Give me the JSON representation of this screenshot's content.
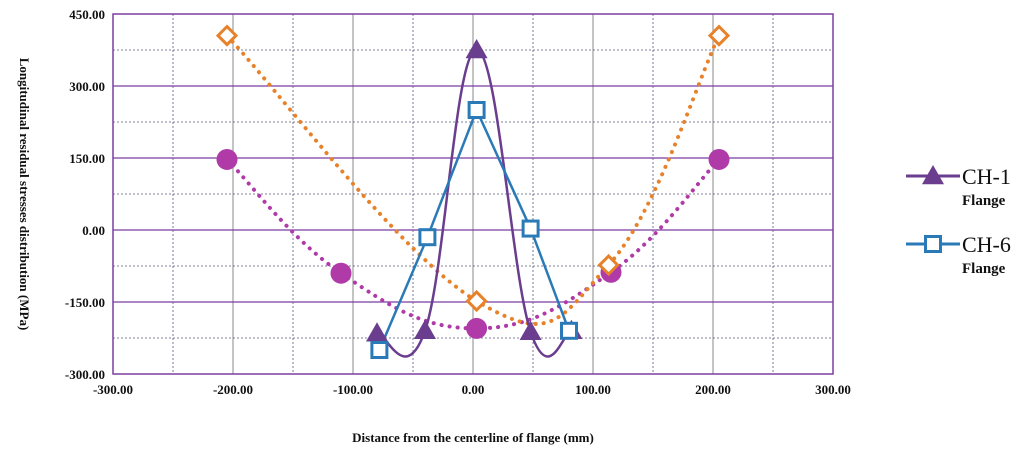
{
  "chart_data": {
    "type": "line",
    "xlabel": "Distance from the centerline of flange (mm)",
    "ylabel": "Longitudinal residual stresses distribution (MPa)",
    "xlim": [
      -300,
      300
    ],
    "ylim": [
      -300,
      450
    ],
    "x_ticks": [
      "-300.00",
      "-200.00",
      "-100.00",
      "0.00",
      "100.00",
      "200.00",
      "300.00"
    ],
    "y_ticks": [
      "450.00",
      "300.00",
      "150.00",
      "0.00",
      "-150.00",
      "-300.00"
    ],
    "grid": true,
    "legend_position": "right",
    "series": [
      {
        "name": "CH-1",
        "subtitle": "Flange",
        "color": "#6a3d8f",
        "marker": "triangle",
        "line": "solid",
        "points": [
          [
            -80,
            -215
          ],
          [
            -40,
            -210
          ],
          [
            3,
            375
          ],
          [
            48,
            -212
          ],
          [
            82,
            -210
          ]
        ]
      },
      {
        "name": "CH-6",
        "subtitle": "Flange",
        "color": "#2a7ab8",
        "marker": "square-open",
        "line": "solid",
        "points": [
          [
            -78,
            -250
          ],
          [
            -38,
            -15
          ],
          [
            3,
            250
          ],
          [
            48,
            3
          ],
          [
            80,
            -210
          ]
        ]
      },
      {
        "color": "#e8822a",
        "marker": "diamond-open",
        "line": "dotted",
        "points": [
          [
            -205,
            405
          ],
          [
            3,
            -148
          ],
          [
            113,
            -73
          ],
          [
            205,
            405
          ]
        ]
      },
      {
        "color": "#b03aa8",
        "marker": "circle",
        "line": "dotted",
        "points": [
          [
            -205,
            147
          ],
          [
            -110,
            -90
          ],
          [
            3,
            -205
          ],
          [
            115,
            -88
          ],
          [
            205,
            147
          ]
        ]
      }
    ]
  }
}
